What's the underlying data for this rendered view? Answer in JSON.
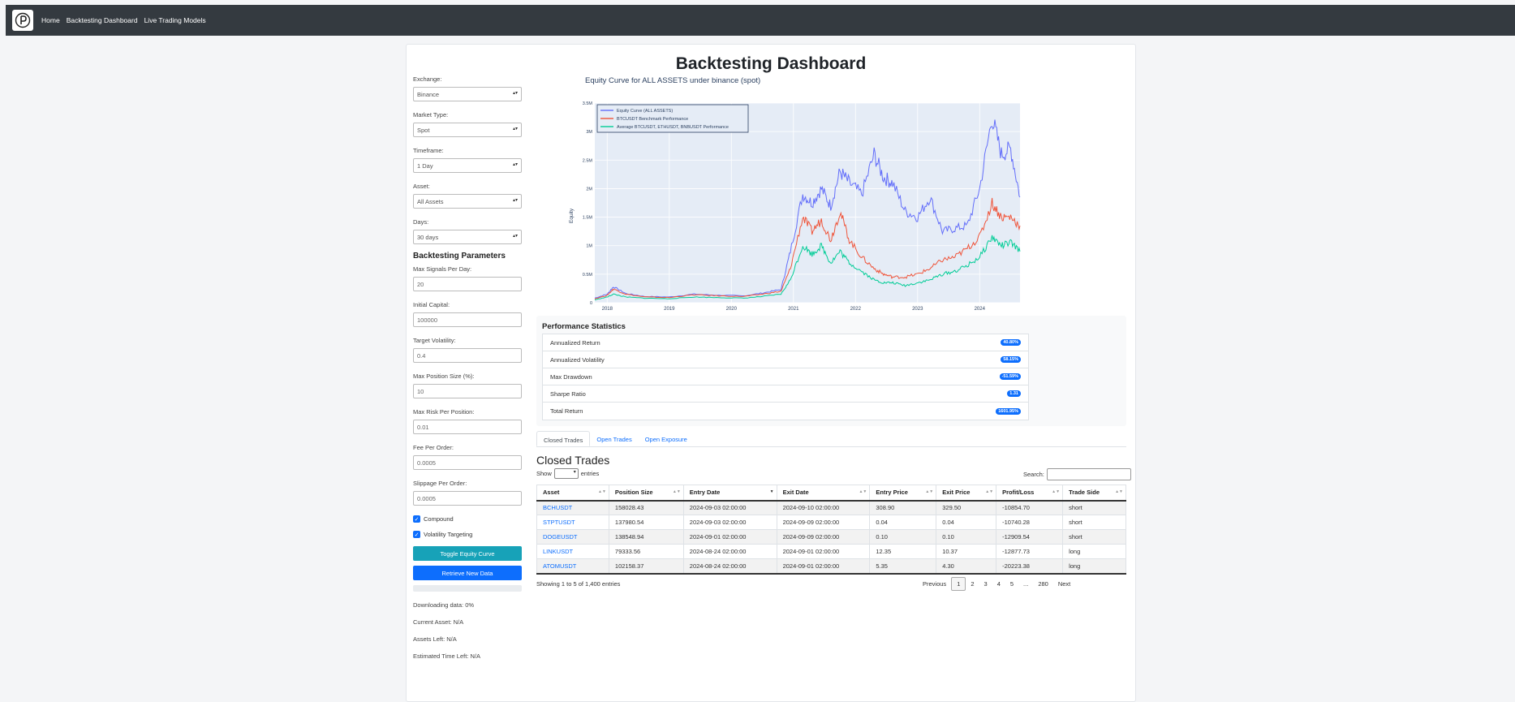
{
  "nav": {
    "links": [
      "Home",
      "Backtesting Dashboard",
      "Live Trading Models"
    ]
  },
  "page": {
    "title": "Backtesting Dashboard"
  },
  "sidebar": {
    "exchange": {
      "label": "Exchange:",
      "value": "Binance"
    },
    "market_type": {
      "label": "Market Type:",
      "value": "Spot"
    },
    "timeframe": {
      "label": "Timeframe:",
      "value": "1 Day"
    },
    "asset": {
      "label": "Asset:",
      "value": "All Assets"
    },
    "days": {
      "label": "Days:",
      "value": "30 days"
    },
    "params_heading": "Backtesting Parameters",
    "max_signals": {
      "label": "Max Signals Per Day:",
      "value": "20"
    },
    "initial_capital": {
      "label": "Initial Capital:",
      "value": "100000"
    },
    "target_volatility": {
      "label": "Target Volatility:",
      "value": "0.4"
    },
    "max_position_size": {
      "label": "Max Position Size (%):",
      "value": "10"
    },
    "max_risk": {
      "label": "Max Risk Per Position:",
      "value": "0.01"
    },
    "fee": {
      "label": "Fee Per Order:",
      "value": "0.0005"
    },
    "slippage": {
      "label": "Slippage Per Order:",
      "value": "0.0005"
    },
    "compound_label": "Compound",
    "vol_target_label": "Volatility Targeting",
    "toggle_button": "Toggle Equity Curve",
    "retrieve_button": "Retrieve New Data",
    "download_progress": 0,
    "status": {
      "downloading": "Downloading data: 0%",
      "current_asset": "Current Asset: N/A",
      "assets_left": "Assets Left: N/A",
      "time_left": "Estimated Time Left: N/A"
    }
  },
  "colors": {
    "equity": "#636efa",
    "btc": "#ef553b",
    "average": "#00cc96",
    "plot_bg": "#e5ecf6",
    "accent": "#0d6efd"
  },
  "chart_data": {
    "type": "line",
    "title": "Equity Curve for ALL ASSETS under binance (spot)",
    "ylabel": "Equity",
    "xlabel": "",
    "x_ticks": [
      "2018",
      "2019",
      "2020",
      "2021",
      "2022",
      "2023",
      "2024"
    ],
    "y_ticks": [
      "0",
      "0.5M",
      "1M",
      "1.5M",
      "2M",
      "2.5M",
      "3M",
      "3.5M"
    ],
    "xlim": [
      2017.8,
      2024.65
    ],
    "ylim": [
      0,
      3500000
    ],
    "legend_position": "top-left",
    "grid": true,
    "x": [
      2017.8,
      2018.0,
      2018.1,
      2018.3,
      2018.6,
      2019.0,
      2019.4,
      2019.8,
      2020.2,
      2020.5,
      2020.8,
      2020.95,
      2021.15,
      2021.3,
      2021.45,
      2021.6,
      2021.75,
      2021.9,
      2022.1,
      2022.3,
      2022.45,
      2022.6,
      2022.8,
      2023.0,
      2023.2,
      2023.4,
      2023.6,
      2023.8,
      2024.0,
      2024.2,
      2024.35,
      2024.5,
      2024.65
    ],
    "series": [
      {
        "name": "Equity Curve (ALL ASSETS)",
        "values": [
          80000,
          150000,
          280000,
          160000,
          110000,
          100000,
          150000,
          130000,
          120000,
          170000,
          230000,
          900000,
          1900000,
          1750000,
          2000000,
          1700000,
          2300000,
          2100000,
          1900000,
          2600000,
          2200000,
          2100000,
          1600000,
          1500000,
          1850000,
          1250000,
          1300000,
          1350000,
          2000000,
          3250000,
          2600000,
          2700000,
          1850000
        ]
      },
      {
        "name": "BTCUSDT Benchmark Performance",
        "values": [
          70000,
          130000,
          240000,
          150000,
          100000,
          90000,
          140000,
          120000,
          110000,
          150000,
          200000,
          600000,
          1500000,
          1250000,
          1450000,
          1100000,
          1600000,
          1100000,
          800000,
          600000,
          500000,
          450000,
          450000,
          500000,
          600000,
          750000,
          800000,
          950000,
          1150000,
          1750000,
          1500000,
          1500000,
          1350000
        ]
      },
      {
        "name": "Average BTCUSDT, ETHUSDT, BNBUSDT Performance",
        "values": [
          50000,
          100000,
          150000,
          100000,
          80000,
          70000,
          100000,
          90000,
          80000,
          110000,
          150000,
          400000,
          1000000,
          850000,
          1000000,
          700000,
          900000,
          700000,
          550000,
          400000,
          350000,
          350000,
          300000,
          350000,
          400000,
          500000,
          550000,
          650000,
          800000,
          1150000,
          1000000,
          1050000,
          900000
        ]
      }
    ]
  },
  "performance": {
    "title": "Performance Statistics",
    "rows": [
      {
        "label": "Annualized Return",
        "value": "40.80%"
      },
      {
        "label": "Annualized Volatility",
        "value": "58.15%"
      },
      {
        "label": "Max Drawdown",
        "value": "-51.59%"
      },
      {
        "label": "Sharpe Ratio",
        "value": "1.31"
      },
      {
        "label": "Total Return",
        "value": "1601.95%"
      }
    ]
  },
  "tabs": [
    "Closed Trades",
    "Open Trades",
    "Open Exposure"
  ],
  "trades": {
    "title": "Closed Trades",
    "show_label": "Show",
    "entries_label": "entries",
    "search_label": "Search:",
    "columns": [
      "Asset",
      "Position Size",
      "Entry Date",
      "Exit Date",
      "Entry Price",
      "Exit Price",
      "Profit/Loss",
      "Trade Side"
    ],
    "rows": [
      [
        "BCHUSDT",
        "158028.43",
        "2024-09-03 02:00:00",
        "2024-09-10 02:00:00",
        "308.90",
        "329.50",
        "-10854.70",
        "short"
      ],
      [
        "STPTUSDT",
        "137980.54",
        "2024-09-03 02:00:00",
        "2024-09-09 02:00:00",
        "0.04",
        "0.04",
        "-10740.28",
        "short"
      ],
      [
        "DOGEUSDT",
        "138548.94",
        "2024-09-01 02:00:00",
        "2024-09-09 02:00:00",
        "0.10",
        "0.10",
        "-12909.54",
        "short"
      ],
      [
        "LINKUSDT",
        "79333.56",
        "2024-08-24 02:00:00",
        "2024-09-01 02:00:00",
        "12.35",
        "10.37",
        "-12877.73",
        "long"
      ],
      [
        "ATOMUSDT",
        "102158.37",
        "2024-08-24 02:00:00",
        "2024-09-01 02:00:00",
        "5.35",
        "4.30",
        "-20223.38",
        "long"
      ]
    ],
    "showing": "Showing 1 to 5 of 1,400 entries",
    "pager": {
      "previous": "Previous",
      "pages": [
        "1",
        "2",
        "3",
        "4",
        "5",
        "...",
        "280"
      ],
      "next": "Next"
    }
  }
}
